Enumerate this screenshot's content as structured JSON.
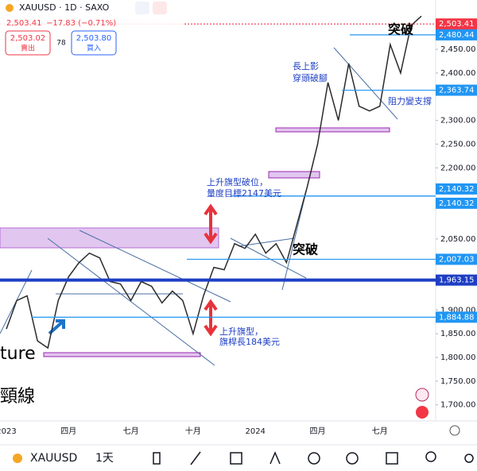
{
  "header": {
    "symbol": "XAUUSD · 1D · SAXO",
    "price": "2,503.41",
    "change": "−17.83 (−0.71%)",
    "sell_price": "2,503.02",
    "sell": "賣出",
    "spread": "78",
    "buy_price": "2,503.80",
    "buy": "買入"
  },
  "chart_data": {
    "type": "line",
    "color": "#2b2b2b",
    "categories": [
      "2023",
      null,
      null,
      null,
      null,
      null,
      "四月",
      null,
      null,
      null,
      null,
      null,
      "七月",
      null,
      null,
      null,
      null,
      null,
      "十月",
      null,
      null,
      null,
      null,
      null,
      "2024",
      null,
      null,
      null,
      null,
      null,
      "四月",
      null,
      null,
      null,
      null,
      null,
      "七月",
      null,
      null,
      null,
      null
    ],
    "values": [
      1860,
      1920,
      1930,
      1835,
      1820,
      1920,
      1970,
      2000,
      2020,
      2010,
      1960,
      1955,
      1920,
      1960,
      1950,
      1915,
      1940,
      1920,
      1850,
      1930,
      1990,
      1985,
      2040,
      2030,
      2060,
      2020,
      2040,
      2000,
      2080,
      2160,
      2250,
      2380,
      2300,
      2420,
      2330,
      2320,
      2330,
      2460,
      2400,
      2500,
      2520
    ],
    "ylim": [
      1666,
      2554
    ],
    "yticks": [
      {
        "value": 2450,
        "label": "2,450.00"
      },
      {
        "value": 2400,
        "label": "2,400.00"
      },
      {
        "value": 2300,
        "label": "2,300.00"
      },
      {
        "value": 2250,
        "label": "2,250.00"
      },
      {
        "value": 2200,
        "label": "2,200.00"
      },
      {
        "value": 2050,
        "label": "2,050.00"
      },
      {
        "value": 1900,
        "label": "1,900.00"
      },
      {
        "value": 1850,
        "label": "1,850.00"
      },
      {
        "value": 1800,
        "label": "1,800.00"
      },
      {
        "value": 1750,
        "label": "1,750.00"
      },
      {
        "value": 1700,
        "label": "1,700.00"
      }
    ],
    "levels": [
      {
        "value": 2503.41,
        "label": "2,503.41",
        "color": "#f23645"
      },
      {
        "value": 2480.44,
        "label": "2,480.44",
        "color": "#2196f3"
      },
      {
        "value": 2363.74,
        "label": "2,363.74",
        "color": "#2196f3"
      },
      {
        "value": 2140.32,
        "label": "2,140.32",
        "color": "#2196f3"
      },
      {
        "value": 2140.32,
        "label": "2,140.32",
        "color": "#2196f3"
      },
      {
        "value": 2007.03,
        "label": "2,007.03",
        "color": "#2196f3"
      },
      {
        "value": 1963.15,
        "label": "1,963.15",
        "color": "#1e3fc4"
      },
      {
        "value": 1884.88,
        "label": "1,884.88",
        "color": "#2196f3"
      }
    ],
    "annotations": [
      "突破",
      "長上影",
      "穿頭破腳",
      "阻力變支撐",
      "上升旗型破位，",
      "量度目標2147美元",
      "突破",
      "上升旗型，",
      "旗桿長184美元",
      "ture",
      "頸線"
    ]
  },
  "toolbar": {
    "symbol": "XAUUSD",
    "interval": "1天"
  }
}
